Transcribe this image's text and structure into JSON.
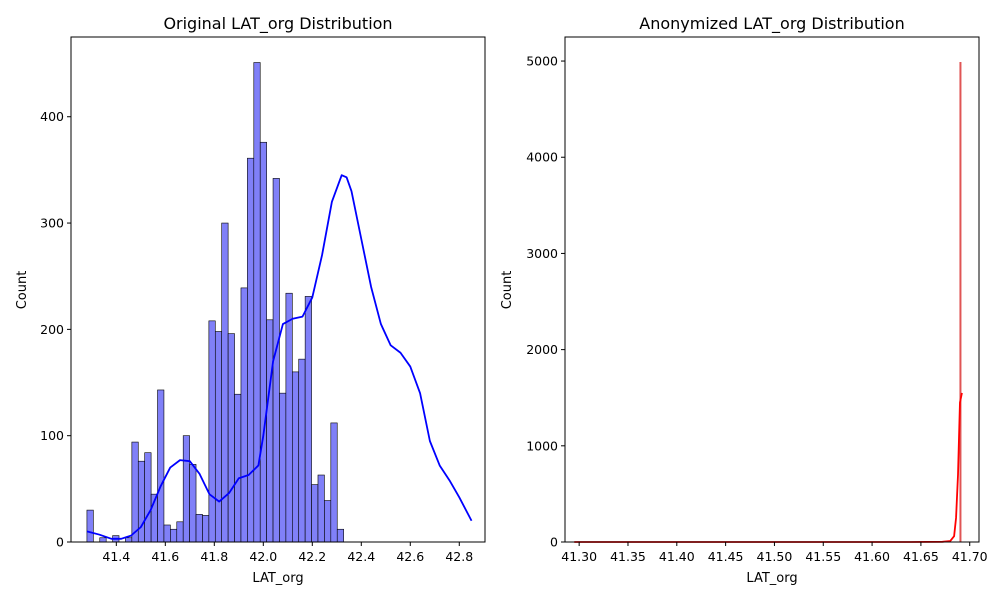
{
  "colors": {
    "left_bar_fill": "#8080f8",
    "left_bar_edge": "#000000",
    "left_kde": "#0000ff",
    "right_bar": "#e05555",
    "right_kde": "#ff0000"
  },
  "chart_data": [
    {
      "type": "bar",
      "title": "Original LAT_org Distribution",
      "xlabel": "LAT_org",
      "ylabel": "Count",
      "xlim": [
        41.215,
        42.905
      ],
      "ylim": [
        0,
        475
      ],
      "xticks": [
        41.4,
        41.6,
        41.8,
        42.0,
        42.2,
        42.4,
        42.6,
        42.8
      ],
      "xtick_labels": [
        "41.4",
        "41.6",
        "41.8",
        "42.0",
        "42.2",
        "42.4",
        "42.6",
        "42.8"
      ],
      "yticks": [
        0,
        100,
        200,
        300,
        400
      ],
      "ytick_labels": [
        "0",
        "100",
        "200",
        "300",
        "400"
      ],
      "grid": false,
      "bins": {
        "start": 41.28,
        "width": 0.0262,
        "counts": [
          30,
          0,
          4,
          0,
          6,
          0,
          4,
          94,
          76,
          84,
          45,
          143,
          16,
          12,
          19,
          100,
          73,
          26,
          25,
          208,
          198,
          300,
          196,
          139,
          239,
          361,
          451,
          376,
          209,
          342,
          140,
          234,
          160,
          172,
          231,
          54,
          63,
          39,
          112,
          12
        ]
      },
      "kde": {
        "x": [
          41.28,
          41.33,
          41.38,
          41.42,
          41.46,
          41.5,
          41.54,
          41.58,
          41.62,
          41.66,
          41.7,
          41.74,
          41.78,
          41.82,
          41.86,
          41.9,
          41.94,
          41.98,
          42.0,
          42.04,
          42.08,
          42.12,
          42.16,
          42.2,
          42.24,
          42.28,
          42.32,
          42.34,
          42.36,
          42.4,
          42.44,
          42.48,
          42.52,
          42.56,
          42.6,
          42.64,
          42.68,
          42.72,
          42.76,
          42.8,
          42.85
        ],
        "y": [
          10,
          7,
          3,
          3,
          6,
          14,
          30,
          52,
          70,
          77,
          76,
          64,
          45,
          38,
          46,
          60,
          63,
          72,
          100,
          170,
          205,
          210,
          212,
          230,
          270,
          320,
          345,
          343,
          330,
          285,
          240,
          205,
          185,
          178,
          165,
          140,
          95,
          72,
          58,
          42,
          20
        ]
      }
    },
    {
      "type": "bar",
      "title": "Anonymized LAT_org Distribution",
      "xlabel": "LAT_org",
      "ylabel": "Count",
      "xlim": [
        41.2855,
        41.7095
      ],
      "ylim": [
        0,
        5250
      ],
      "xticks": [
        41.3,
        41.35,
        41.4,
        41.45,
        41.5,
        41.55,
        41.6,
        41.65,
        41.7
      ],
      "xtick_labels": [
        "41.30",
        "41.35",
        "41.40",
        "41.45",
        "41.50",
        "41.55",
        "41.60",
        "41.65",
        "41.70"
      ],
      "yticks": [
        0,
        1000,
        2000,
        3000,
        4000,
        5000
      ],
      "ytick_labels": [
        "0",
        "1000",
        "2000",
        "3000",
        "4000",
        "5000"
      ],
      "grid": false,
      "bars": [
        {
          "x": 41.6905,
          "count": 4990
        }
      ],
      "kde": {
        "x": [
          41.295,
          41.5,
          41.64,
          41.672,
          41.68,
          41.684,
          41.686,
          41.688,
          41.69,
          41.692
        ],
        "y": [
          0,
          0,
          0,
          2,
          10,
          60,
          250,
          700,
          1450,
          1550
        ]
      }
    }
  ]
}
